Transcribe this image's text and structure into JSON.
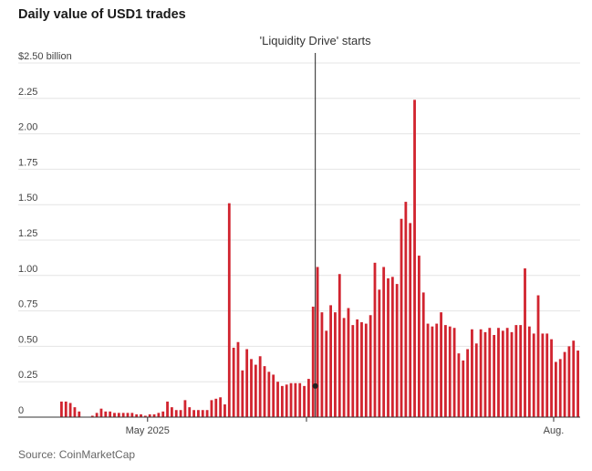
{
  "chart_data": {
    "type": "bar",
    "title": "Daily value of USD1 trades",
    "source": "Source: CoinMarketCap",
    "ylim": [
      0,
      2.5
    ],
    "y_ticks": [
      {
        "value": 2.5,
        "label": "$2.50 billion"
      },
      {
        "value": 2.25,
        "label": "2.25"
      },
      {
        "value": 2.0,
        "label": "2.00"
      },
      {
        "value": 1.75,
        "label": "1.75"
      },
      {
        "value": 1.5,
        "label": "1.50"
      },
      {
        "value": 1.25,
        "label": "1.25"
      },
      {
        "value": 1.0,
        "label": "1.00"
      },
      {
        "value": 0.75,
        "label": "0.75"
      },
      {
        "value": 0.5,
        "label": "0.50"
      },
      {
        "value": 0.25,
        "label": "0.25"
      },
      {
        "value": 0,
        "label": "0"
      }
    ],
    "x_ticks": [
      {
        "index": 19.5,
        "label": "May 2025"
      },
      {
        "index": 55.5,
        "label": ""
      },
      {
        "index": 111.5,
        "label": "Aug."
      }
    ],
    "annotation": {
      "label": "'Liquidity Drive' starts",
      "index": 57.5,
      "value": 0.22
    },
    "bar_color": "#d1242f",
    "values": [
      0.11,
      0.11,
      0.1,
      0.07,
      0.04,
      0.0,
      0.0,
      0.01,
      0.03,
      0.06,
      0.04,
      0.04,
      0.03,
      0.03,
      0.03,
      0.03,
      0.03,
      0.02,
      0.02,
      0.01,
      0.02,
      0.02,
      0.03,
      0.04,
      0.11,
      0.07,
      0.05,
      0.05,
      0.12,
      0.07,
      0.05,
      0.05,
      0.05,
      0.05,
      0.12,
      0.13,
      0.14,
      0.09,
      1.51,
      0.49,
      0.53,
      0.33,
      0.48,
      0.41,
      0.37,
      0.43,
      0.36,
      0.32,
      0.3,
      0.25,
      0.22,
      0.23,
      0.24,
      0.24,
      0.24,
      0.22,
      0.27,
      0.78,
      1.06,
      0.74,
      0.61,
      0.79,
      0.74,
      1.01,
      0.7,
      0.77,
      0.65,
      0.69,
      0.67,
      0.66,
      0.72,
      1.09,
      0.9,
      1.06,
      0.98,
      0.99,
      0.94,
      1.4,
      1.52,
      1.37,
      2.24,
      1.14,
      0.88,
      0.66,
      0.64,
      0.66,
      0.74,
      0.65,
      0.64,
      0.63,
      0.45,
      0.4,
      0.48,
      0.62,
      0.52,
      0.62,
      0.6,
      0.63,
      0.58,
      0.63,
      0.61,
      0.63,
      0.6,
      0.65,
      0.65,
      1.05,
      0.64,
      0.59,
      0.86,
      0.59,
      0.59,
      0.55,
      0.39,
      0.41,
      0.46,
      0.5,
      0.54,
      0.47
    ]
  }
}
